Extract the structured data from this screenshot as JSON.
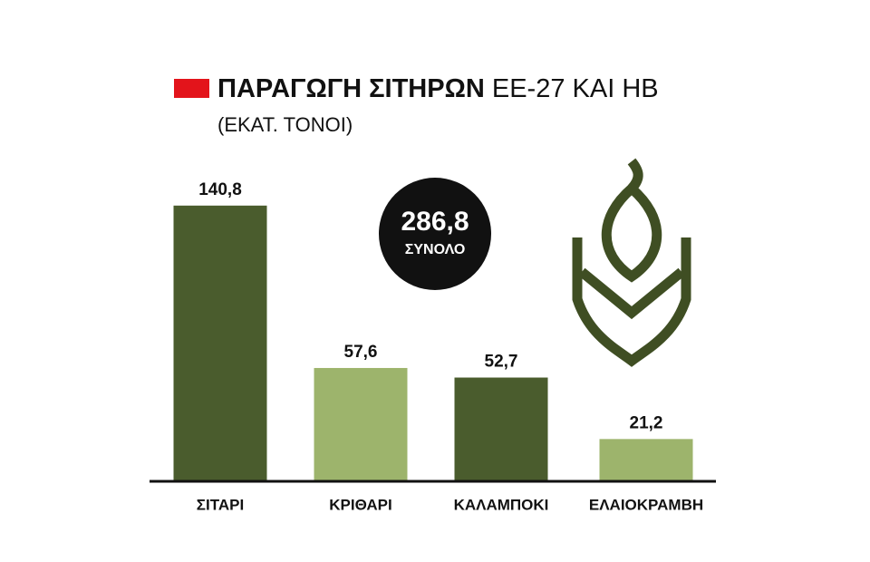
{
  "chart_data": {
    "type": "bar",
    "title": [
      "ΠΑΡΑΓΩΓΗ ΣΙΤΗΡΩΝ",
      "ΕΕ-27 ΚΑΙ ΗΒ"
    ],
    "subtitle": "(ΕΚΑΤ. ΤΟΝΟΙ)",
    "annotations": [
      "286,8",
      "ΣΥΝΟΛΟ"
    ],
    "categories": [
      "ΣΙΤΑΡΙ",
      "ΚΡΙΘΑΡΙ",
      "ΚΑΛΑΜΠΟΚΙ",
      "ΕΛΑΙΟΚΡΑΜΒΗ"
    ],
    "values": [
      140.8,
      57.6,
      52.7,
      21.2
    ],
    "value_labels": [
      "140,8",
      "57,6",
      "52,7",
      "21,2"
    ],
    "colors": [
      "#4a5c2d",
      "#9db46c",
      "#4a5c2d",
      "#9db46c"
    ],
    "ylim": [
      0,
      150
    ]
  }
}
